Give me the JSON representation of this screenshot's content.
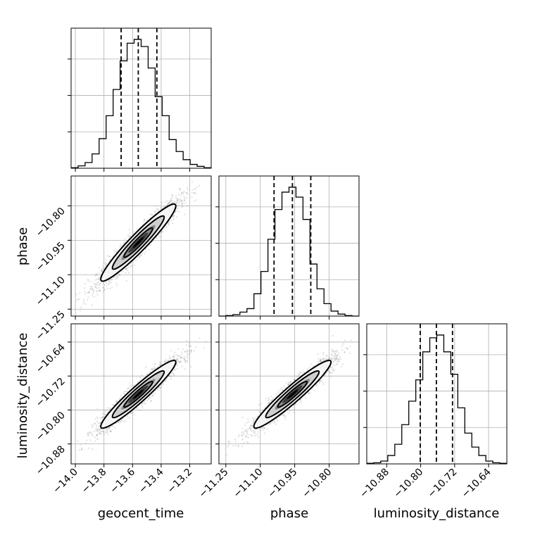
{
  "chart_data": {
    "type": "corner",
    "parameters": [
      "geocent_time",
      "phase",
      "luminosity_distance"
    ],
    "ranges": {
      "geocent_time": [
        -14.03,
        -13.05
      ],
      "phase": [
        -11.28,
        -10.67
      ],
      "luminosity_distance": [
        -10.927,
        -10.597
      ]
    },
    "ticks": {
      "geocent_time": [
        -14.0,
        -13.8,
        -13.6,
        -13.4,
        -13.2
      ],
      "phase": [
        -11.25,
        -11.1,
        -10.95,
        -10.8
      ],
      "luminosity_distance": [
        -10.88,
        -10.8,
        -10.72,
        -10.64
      ]
    },
    "tick_labels": {
      "geocent_time": [
        "−14.0",
        "−13.8",
        "−13.6",
        "−13.4",
        "−13.2"
      ],
      "phase": [
        "−11.25",
        "−11.10",
        "−10.95",
        "−10.80"
      ],
      "luminosity_distance": [
        "−10.88",
        "−10.80",
        "−10.72",
        "−10.64"
      ]
    },
    "quantiles": {
      "geocent_time": [
        -13.68,
        -13.56,
        -13.43
      ],
      "phase": [
        -11.04,
        -10.96,
        -10.88
      ],
      "luminosity_distance": [
        -10.801,
        -10.763,
        -10.725
      ]
    },
    "histograms": {
      "geocent_time": {
        "edges": [
          -14.03,
          -13.981,
          -13.932,
          -13.883,
          -13.834,
          -13.785,
          -13.736,
          -13.687,
          -13.638,
          -13.589,
          -13.54,
          -13.491,
          -13.442,
          -13.393,
          -13.344,
          -13.295,
          -13.246,
          -13.197,
          -13.148,
          -13.099,
          -13.05
        ],
        "counts": [
          1,
          5,
          12,
          30,
          62,
          110,
          165,
          225,
          262,
          270,
          255,
          210,
          150,
          110,
          60,
          35,
          18,
          8,
          4,
          1
        ]
      },
      "phase": {
        "edges": [
          -11.28,
          -11.2495,
          -11.219,
          -11.1885,
          -11.158,
          -11.1275,
          -11.097,
          -11.0665,
          -11.036,
          -11.0055,
          -10.975,
          -10.9445,
          -10.914,
          -10.8835,
          -10.853,
          -10.8225,
          -10.792,
          -10.7615,
          -10.731,
          -10.7005,
          -10.67
        ],
        "counts": [
          0,
          1,
          3,
          8,
          15,
          45,
          90,
          155,
          215,
          250,
          260,
          240,
          195,
          105,
          55,
          25,
          10,
          4,
          1,
          0
        ]
      },
      "luminosity_distance": {
        "edges": [
          -10.927,
          -10.9105,
          -10.894,
          -10.8775,
          -10.861,
          -10.8445,
          -10.828,
          -10.8115,
          -10.795,
          -10.7785,
          -10.762,
          -10.7455,
          -10.729,
          -10.7125,
          -10.696,
          -10.6795,
          -10.663,
          -10.6465,
          -10.63,
          -10.6135,
          -10.597
        ],
        "counts": [
          1,
          2,
          5,
          15,
          35,
          70,
          112,
          150,
          200,
          225,
          230,
          200,
          160,
          100,
          55,
          30,
          15,
          5,
          2,
          1
        ]
      }
    },
    "scatter": {
      "points_per_panel": 2000,
      "correlation": 0.95
    },
    "contour_levels": 3
  }
}
